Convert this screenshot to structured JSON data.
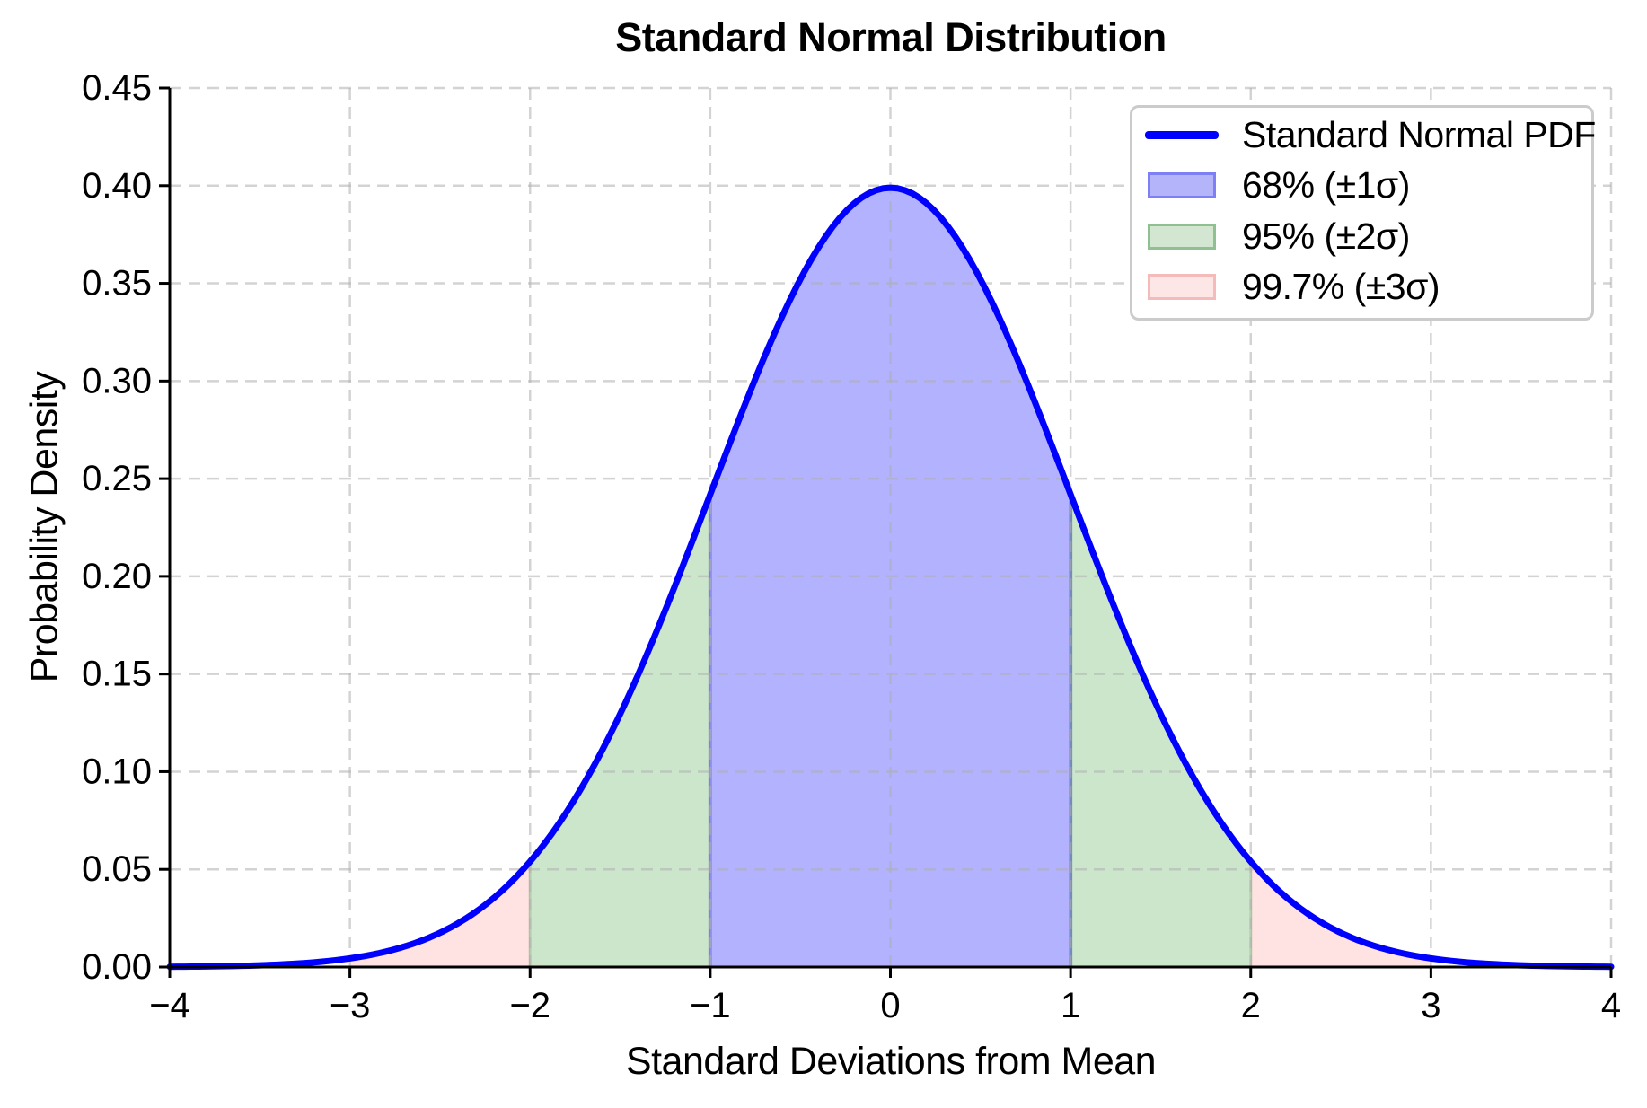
{
  "chart_data": {
    "type": "area",
    "title": "Standard Normal Distribution",
    "xlabel": "Standard Deviations from Mean",
    "ylabel": "Probability Density",
    "xlim": [
      -4,
      4
    ],
    "ylim": [
      0,
      0.45
    ],
    "xticks": [
      -4,
      -3,
      -2,
      -1,
      0,
      1,
      2,
      3,
      4
    ],
    "xtick_labels": [
      "−4",
      "−3",
      "−2",
      "−1",
      "0",
      "1",
      "2",
      "3",
      "4"
    ],
    "yticks": [
      0.0,
      0.05,
      0.1,
      0.15,
      0.2,
      0.25,
      0.3,
      0.35,
      0.4,
      0.45
    ],
    "ytick_labels": [
      "0.00",
      "0.05",
      "0.10",
      "0.15",
      "0.20",
      "0.25",
      "0.30",
      "0.35",
      "0.40",
      "0.45"
    ],
    "grid": true,
    "grid_style": "dashed",
    "legend_position": "upper right",
    "background": "#ffffff",
    "axis_color": "#000000",
    "grid_color": "rgba(175,175,175,0.55)",
    "distribution": {
      "mean": 0,
      "std": 1,
      "peak_density": 0.3989
    },
    "curve": {
      "label": "Standard Normal PDF",
      "color": "#0000ff",
      "width": 7
    },
    "bands": [
      {
        "label": "68% (±1σ)",
        "coverage_pct": 68,
        "sigma": 1,
        "range": [
          -1,
          1
        ],
        "fill": "rgba(0,0,255,0.30)",
        "edge_line": "#8f8fe8",
        "swatch_fill": "#b4b4fb",
        "swatch_border": "#7f7ff5"
      },
      {
        "label": "95% (±2σ)",
        "coverage_pct": 95,
        "sigma": 2,
        "range": [
          -2,
          2
        ],
        "fill": "rgba(0,128,0,0.20)",
        "edge_line": "#b7d4b7",
        "swatch_fill": "#d2e6d2",
        "swatch_border": "#8fc08f"
      },
      {
        "label": "99.7% (±3σ)",
        "coverage_pct": 99.7,
        "sigma": 3,
        "range": [
          -3,
          3
        ],
        "fill": "rgba(255,0,0,0.11)",
        "edge_line": "",
        "swatch_fill": "#fde6e6",
        "swatch_border": "#f5baba"
      }
    ]
  }
}
